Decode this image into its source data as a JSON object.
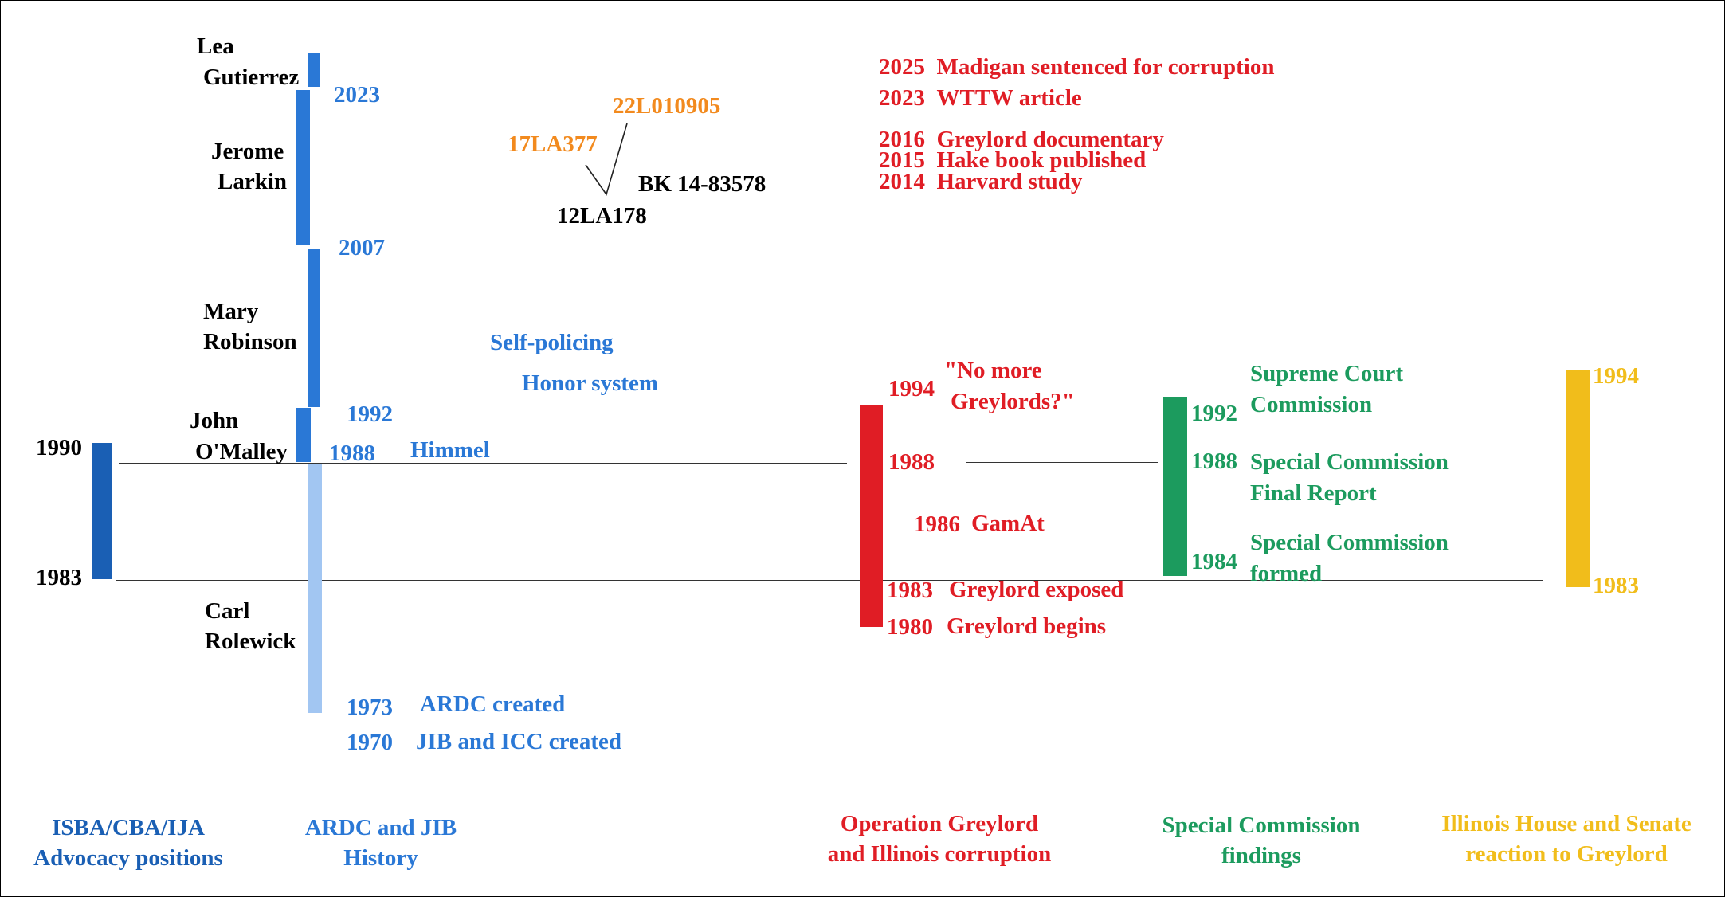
{
  "colors": {
    "isba": "#1a5fb4",
    "ardc": "#2a78d6",
    "ardc_light": "#a2c6f2",
    "case": "#f28a1e",
    "greylord": "#e01d25",
    "commission": "#1c9b5e",
    "legislature": "#f1bd1b"
  },
  "isba": {
    "year_1990": "1990",
    "year_1983": "1983",
    "footer_line1": "ISBA/CBA/IJA",
    "footer_line2": "Advocacy positions"
  },
  "ardc": {
    "people": {
      "lea_1": "Lea",
      "lea_2": "Gutierrez",
      "jerome_1": "Jerome",
      "jerome_2": "Larkin",
      "mary_1": "Mary",
      "mary_2": "Robinson",
      "john_1": "John",
      "john_2": "O'Malley",
      "carl_1": "Carl",
      "carl_2": "Rolewick"
    },
    "years": {
      "y2023": "2023",
      "y2007": "2007",
      "y1992": "1992",
      "y1988": "1988",
      "y1973": "1973",
      "y1970": "1970"
    },
    "himmel": "Himmel",
    "self_policing": "Self-policing",
    "honor_system": "Honor system",
    "ardc_created": "ARDC created",
    "jib_icc_created": "JIB and ICC created",
    "footer_line1": "ARDC and JIB",
    "footer_line2": "History"
  },
  "cases": {
    "case_22l": "22L010905",
    "case_17la": "17LA377",
    "case_bk": "BK 14-83578",
    "case_12la": "12LA178"
  },
  "greylord": {
    "news": [
      {
        "year": "2025",
        "text": "Madigan sentenced for corruption"
      },
      {
        "year": "2023",
        "text": "WTTW article"
      },
      {
        "year": "2016",
        "text": "Greylord documentary"
      },
      {
        "year": "2015",
        "text": "Hake book published"
      },
      {
        "year": "2014",
        "text": "Harvard study"
      }
    ],
    "y1994": "1994",
    "quote_1": "\"No more",
    "quote_2": "Greylords?\"",
    "y1988": "1988",
    "y1986": "1986",
    "gamat": "GamAt",
    "y1983": "1983",
    "exposed": "Greylord exposed",
    "y1980": "1980",
    "begins": "Greylord begins",
    "footer_line1": "Operation Greylord",
    "footer_line2": "and Illinois corruption"
  },
  "commission": {
    "y1992": "1992",
    "supreme_1": "Supreme Court",
    "supreme_2": "Commission",
    "y1988": "1988",
    "final_1": "Special Commission",
    "final_2": "Final Report",
    "y1984": "1984",
    "formed_1": "Special Commission",
    "formed_2": "formed",
    "footer_line1": "Special Commission",
    "footer_line2": "findings"
  },
  "legislature": {
    "y1994": "1994",
    "y1983": "1983",
    "footer_line1": "Illinois House and Senate",
    "footer_line2": "reaction to Greylord"
  }
}
